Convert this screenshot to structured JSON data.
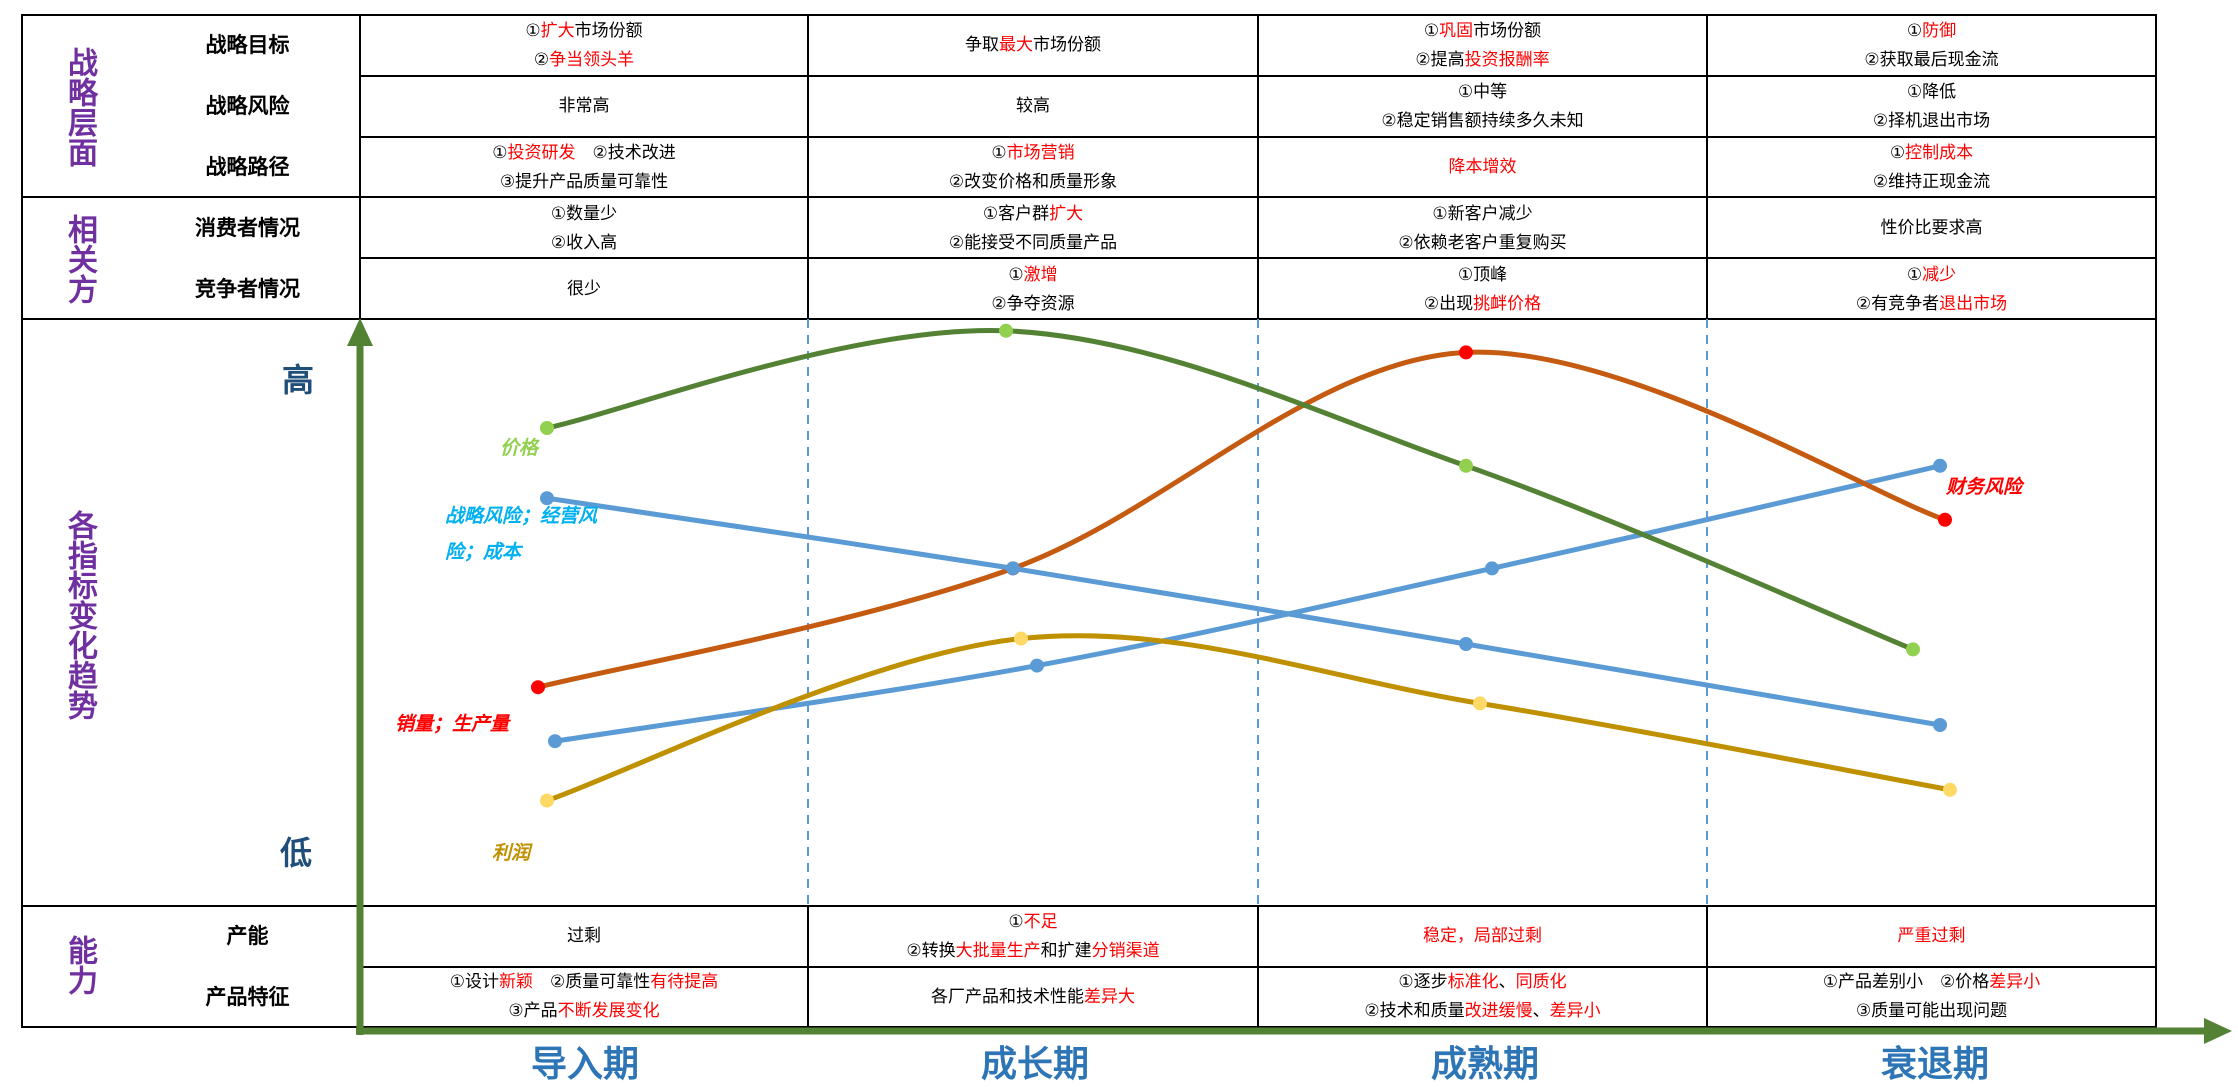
{
  "colors": {
    "category": "#7030A0",
    "phase": "#2E75B6",
    "axis": "#548235",
    "highlight": "#FF0000",
    "price": "#548235",
    "sales": "#C55A11",
    "risk": "#5B9BD5",
    "profit": "#BF9000"
  },
  "categories": {
    "strategy": "战略层面",
    "stakeholders": "相关方",
    "trends": "各指标变化趋势",
    "capability": "能力"
  },
  "row_labels": {
    "goal": "战略目标",
    "risk": "战略风险",
    "path": "战略路径",
    "consumer": "消费者情况",
    "competitor": "竞争者情况",
    "capacity": "产能",
    "product": "产品特征"
  },
  "phases": [
    "导入期",
    "成长期",
    "成熟期",
    "衰退期"
  ],
  "table": {
    "goal": [
      [
        [
          "①",
          ""
        ],
        [
          "扩大",
          "r"
        ],
        [
          "市场份额",
          ""
        ],
        [
          "|",
          ""
        ],
        [
          "②",
          ""
        ],
        [
          "争当领头羊",
          "r"
        ]
      ],
      [
        [
          "争取",
          ""
        ],
        [
          "最大",
          "r"
        ],
        [
          "市场份额",
          ""
        ]
      ],
      [
        [
          "①",
          ""
        ],
        [
          "巩固",
          "r"
        ],
        [
          "市场份额",
          ""
        ],
        [
          "|",
          ""
        ],
        [
          "②提高",
          ""
        ],
        [
          "投资报酬率",
          "r"
        ]
      ],
      [
        [
          "①",
          ""
        ],
        [
          "防御",
          "r"
        ],
        [
          "|",
          ""
        ],
        [
          "②获取最后现金流",
          ""
        ]
      ]
    ],
    "risk": [
      [
        [
          "非常高",
          ""
        ]
      ],
      [
        [
          "较高",
          ""
        ]
      ],
      [
        [
          "①中等",
          ""
        ],
        [
          "|",
          ""
        ],
        [
          "②稳定销售额持续多久未知",
          ""
        ]
      ],
      [
        [
          "①降低",
          ""
        ],
        [
          "|",
          ""
        ],
        [
          "②择机退出市场",
          ""
        ]
      ]
    ],
    "path": [
      [
        [
          "①",
          ""
        ],
        [
          "投资研发",
          "r"
        ],
        [
          "　②技术改进",
          ""
        ],
        [
          "|",
          ""
        ],
        [
          "③提升产品质量可靠性",
          ""
        ]
      ],
      [
        [
          "①",
          ""
        ],
        [
          "市场营销",
          "r"
        ],
        [
          "|",
          ""
        ],
        [
          "②改变价格和质量形象",
          ""
        ]
      ],
      [
        [
          "降本增效",
          "r"
        ]
      ],
      [
        [
          "①",
          ""
        ],
        [
          "控制成本",
          "r"
        ],
        [
          "|",
          ""
        ],
        [
          "②维持正现金流",
          ""
        ]
      ]
    ],
    "consumer": [
      [
        [
          "①数量少",
          ""
        ],
        [
          "|",
          ""
        ],
        [
          "②收入高",
          ""
        ]
      ],
      [
        [
          "①客户群",
          ""
        ],
        [
          "扩大",
          "r"
        ],
        [
          "|",
          ""
        ],
        [
          "②能接受不同质量产品",
          ""
        ]
      ],
      [
        [
          "①新客户减少",
          ""
        ],
        [
          "|",
          ""
        ],
        [
          "②依赖老客户重复购买",
          ""
        ]
      ],
      [
        [
          "性价比要求高",
          ""
        ]
      ]
    ],
    "competitor": [
      [
        [
          "很少",
          ""
        ]
      ],
      [
        [
          "①",
          ""
        ],
        [
          "激增",
          "r"
        ],
        [
          "|",
          ""
        ],
        [
          "②争夺资源",
          ""
        ]
      ],
      [
        [
          "①顶峰",
          ""
        ],
        [
          "|",
          ""
        ],
        [
          "②出现",
          ""
        ],
        [
          "挑衅价格",
          "r"
        ]
      ],
      [
        [
          "①",
          ""
        ],
        [
          "减少",
          "r"
        ],
        [
          "|",
          ""
        ],
        [
          "②有竞争者",
          ""
        ],
        [
          "退出市场",
          "r"
        ]
      ]
    ],
    "capacity": [
      [
        [
          "过剩",
          ""
        ]
      ],
      [
        [
          "①",
          ""
        ],
        [
          "不足",
          "r"
        ],
        [
          "|",
          ""
        ],
        [
          "②转换",
          ""
        ],
        [
          "大批量生产",
          "r"
        ],
        [
          "和扩建",
          ""
        ],
        [
          "分销渠道",
          "r"
        ]
      ],
      [
        [
          "稳定，局部过剩",
          "r"
        ]
      ],
      [
        [
          "严重过剩",
          "r"
        ]
      ]
    ],
    "product": [
      [
        [
          "①设计",
          ""
        ],
        [
          "新颖",
          "r"
        ],
        [
          "　②质量可靠性",
          ""
        ],
        [
          "有待提高",
          "r"
        ],
        [
          "|",
          ""
        ],
        [
          "③产品",
          ""
        ],
        [
          "不断发展变化",
          "r"
        ]
      ],
      [
        [
          "各厂产品和技术性能",
          ""
        ],
        [
          "差异大",
          "r"
        ]
      ],
      [
        [
          "①逐步",
          ""
        ],
        [
          "标准化",
          "r"
        ],
        [
          "、",
          ""
        ],
        [
          "同质化",
          "r"
        ],
        [
          "|",
          ""
        ],
        [
          "②技术和质量",
          ""
        ],
        [
          "改进缓慢",
          "r"
        ],
        [
          "、",
          ""
        ],
        [
          "差异小",
          "r"
        ]
      ],
      [
        [
          "①产品差别小　②价格",
          ""
        ],
        [
          "差异小",
          "r"
        ],
        [
          "|",
          ""
        ],
        [
          "③质量可能出现问题",
          ""
        ]
      ]
    ]
  },
  "axis": {
    "high": "高",
    "low": "低"
  },
  "chart_data": {
    "type": "line",
    "x": [
      0,
      1,
      2,
      3
    ],
    "ylim": [
      0,
      100
    ],
    "series": [
      {
        "name": "价格",
        "values": [
          80,
          98,
          73,
          39
        ]
      },
      {
        "name": "战略风险；经营风险；成本",
        "values": [
          67,
          54,
          40,
          25
        ]
      },
      {
        "name": "销量；生产量",
        "values": [
          32,
          54,
          94,
          63
        ]
      },
      {
        "name": "利润",
        "values": [
          11,
          41,
          29,
          13
        ]
      },
      {
        "name": "财务风险",
        "values": [
          22,
          36,
          54,
          73
        ]
      }
    ]
  }
}
